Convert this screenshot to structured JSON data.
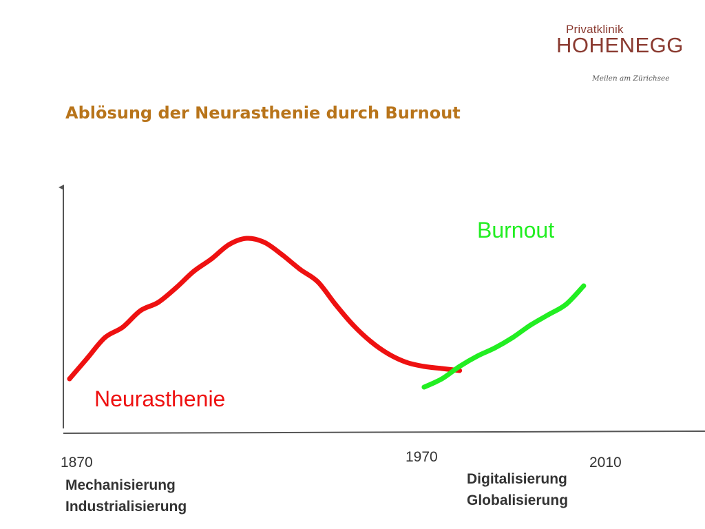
{
  "logo": {
    "line1": "Privatklinik",
    "line2": "HOHENEGG",
    "tagline": "Meilen am Zürichsee",
    "color": "#8a3a30"
  },
  "title": "Ablösung der Neurasthenie durch Burnout",
  "chart_data": {
    "type": "line",
    "title": "Ablösung der Neurasthenie durch Burnout",
    "xlabel": "",
    "ylabel": "",
    "grid": false,
    "legend": "none",
    "x_ticks": [
      "1870",
      "1970",
      "2010"
    ],
    "series": [
      {
        "name": "Neurasthenie",
        "color": "#ee1111",
        "x": [
          1870,
          1875,
          1880,
          1885,
          1890,
          1895,
          1900,
          1905,
          1910,
          1915,
          1920,
          1925,
          1930,
          1935,
          1940,
          1945,
          1950,
          1955,
          1960,
          1965,
          1970,
          1975,
          1980
        ],
        "y": [
          2,
          12,
          22,
          27,
          35,
          39,
          46,
          54,
          60,
          67,
          70,
          68,
          62,
          55,
          49,
          38,
          28,
          20,
          14,
          10,
          8,
          7,
          6
        ]
      },
      {
        "name": "Burnout",
        "color": "#22ee22",
        "x": [
          1970,
          1975,
          1980,
          1985,
          1990,
          1995,
          2000,
          2005,
          2010,
          2015
        ],
        "y": [
          -2,
          2,
          8,
          13,
          17,
          22,
          28,
          33,
          38,
          47
        ]
      }
    ]
  },
  "eras": {
    "left": [
      "Mechanisierung",
      "Industrialisierung"
    ],
    "right": [
      "Digitalisierung",
      "Globalisierung"
    ]
  }
}
